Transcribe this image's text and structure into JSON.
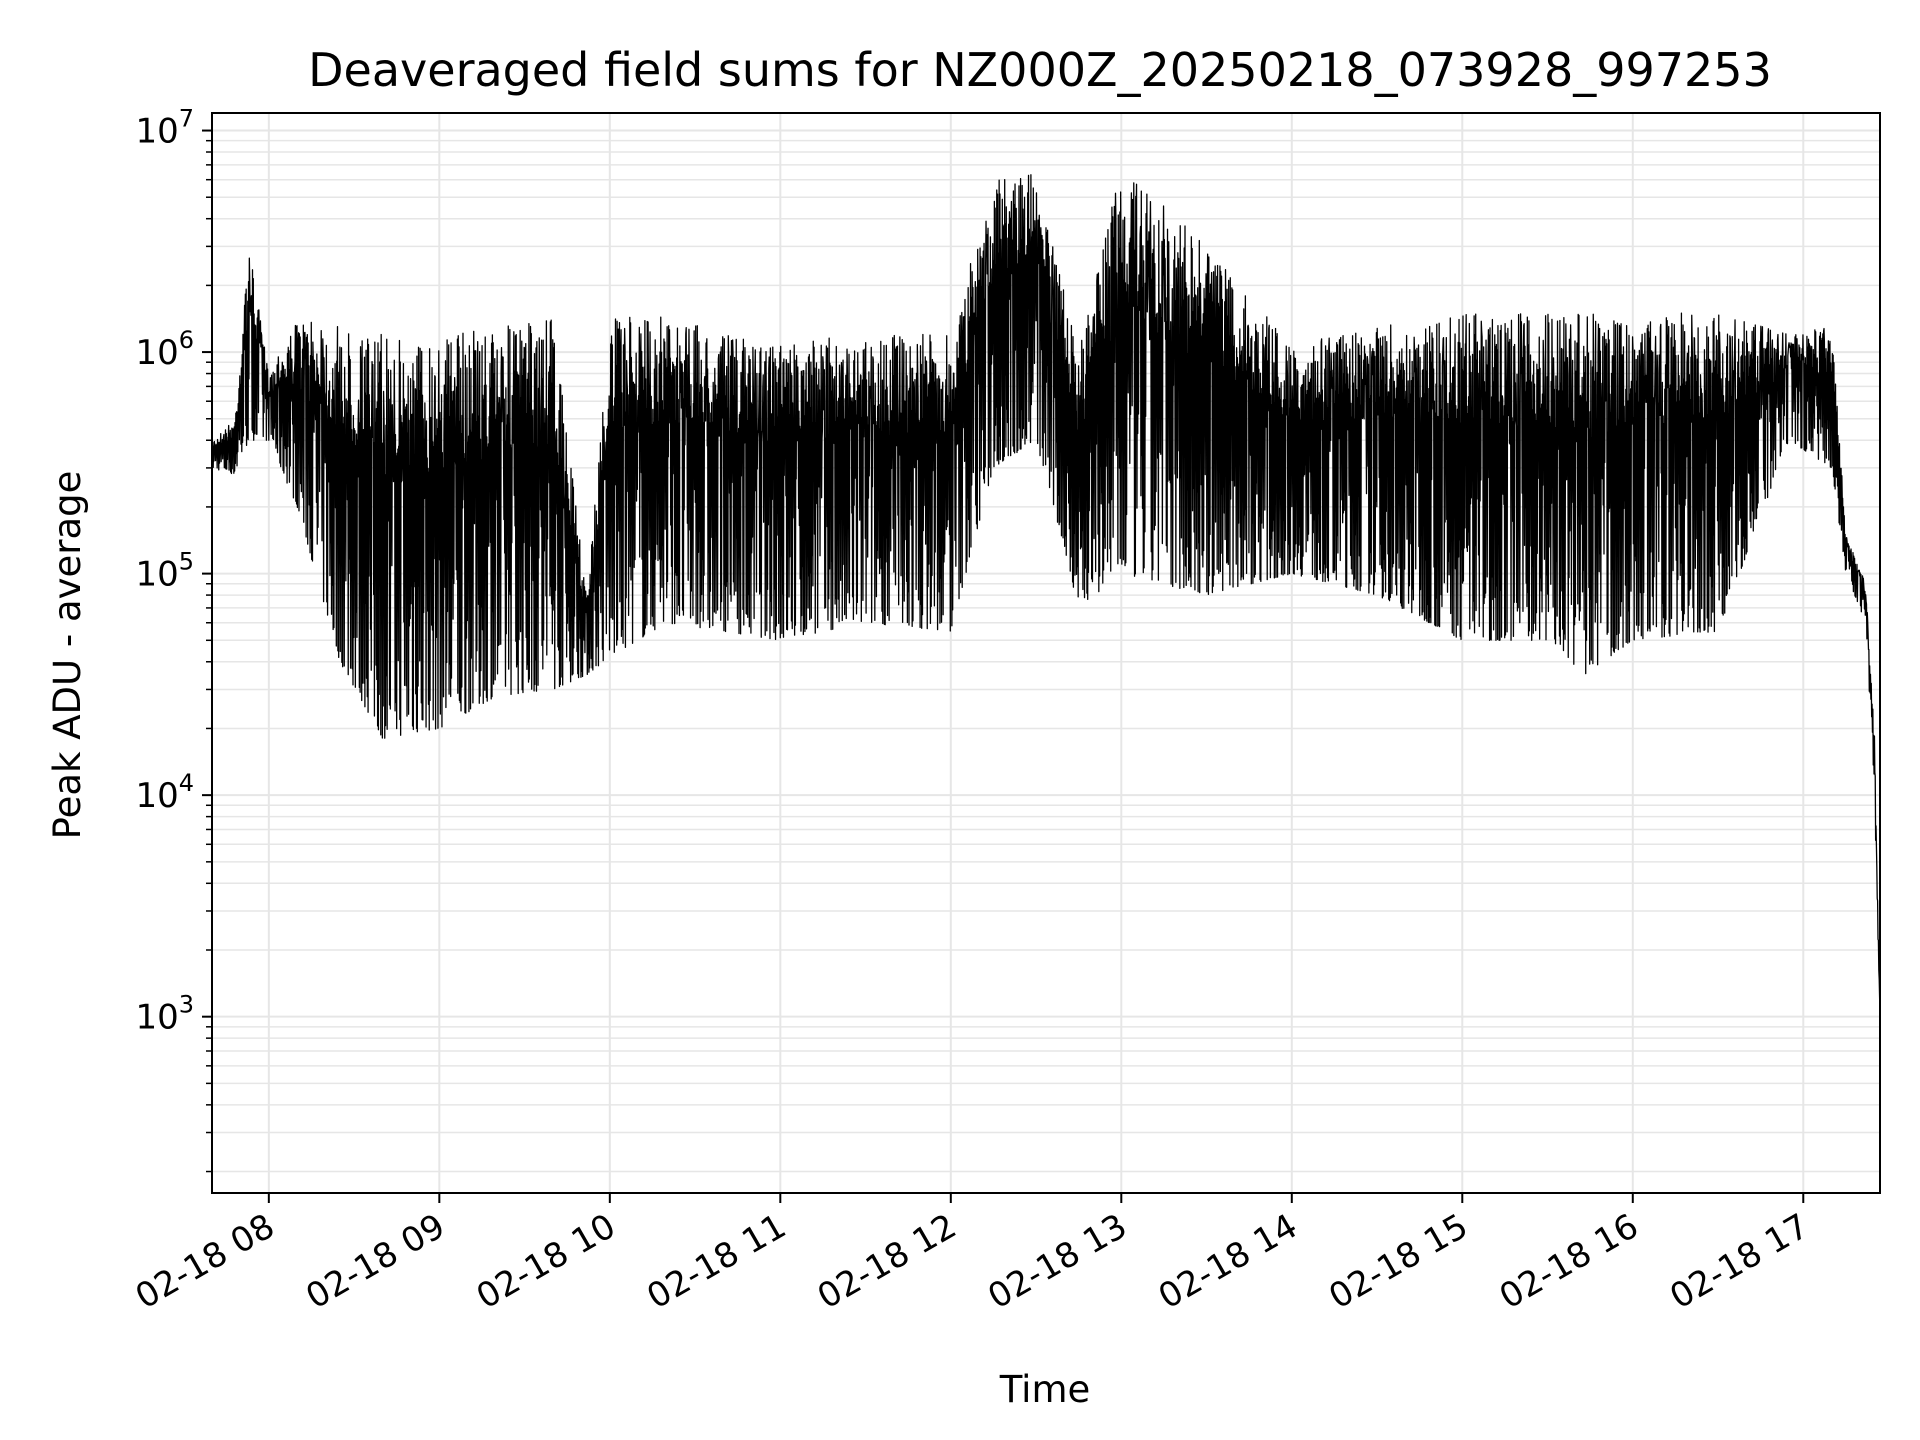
{
  "chart_data": {
    "type": "line",
    "title": "Deaveraged field sums for NZ000Z_20250218_073928_997253",
    "xlabel": "Time",
    "ylabel": "Peak ADU - average",
    "y_scale": "log",
    "ylim": [
      160,
      12000000
    ],
    "xlim": [
      "2025-02-18 07:40",
      "2025-02-18 17:27"
    ],
    "grid": true,
    "line_color": "#000000",
    "x_ticks": [
      {
        "label": "02-18 08",
        "time": "2025-02-18 08:00"
      },
      {
        "label": "02-18 09",
        "time": "2025-02-18 09:00"
      },
      {
        "label": "02-18 10",
        "time": "2025-02-18 10:00"
      },
      {
        "label": "02-18 11",
        "time": "2025-02-18 11:00"
      },
      {
        "label": "02-18 12",
        "time": "2025-02-18 12:00"
      },
      {
        "label": "02-18 13",
        "time": "2025-02-18 13:00"
      },
      {
        "label": "02-18 14",
        "time": "2025-02-18 14:00"
      },
      {
        "label": "02-18 15",
        "time": "2025-02-18 15:00"
      },
      {
        "label": "02-18 16",
        "time": "2025-02-18 16:00"
      },
      {
        "label": "02-18 17",
        "time": "2025-02-18 17:00"
      }
    ],
    "y_ticks": [
      {
        "base": "10",
        "exp": "3",
        "value": 1000
      },
      {
        "base": "10",
        "exp": "4",
        "value": 10000
      },
      {
        "base": "10",
        "exp": "5",
        "value": 100000
      },
      {
        "base": "10",
        "exp": "6",
        "value": 1000000
      },
      {
        "base": "10",
        "exp": "7",
        "value": 10000000
      }
    ],
    "envelope": {
      "description_units": "upper and lower bounds of the rapidly oscillating trace, in Peak ADU",
      "points": [
        {
          "time": "2025-02-18 07:40",
          "upper": 400000,
          "lower": 300000
        },
        {
          "time": "2025-02-18 07:48",
          "upper": 500000,
          "lower": 280000
        },
        {
          "time": "2025-02-18 07:53",
          "upper": 3000000,
          "lower": 400000
        },
        {
          "time": "2025-02-18 08:00",
          "upper": 800000,
          "lower": 400000
        },
        {
          "time": "2025-02-18 08:10",
          "upper": 1400000,
          "lower": 200000
        },
        {
          "time": "2025-02-18 08:25",
          "upper": 1300000,
          "lower": 40000
        },
        {
          "time": "2025-02-18 08:40",
          "upper": 1200000,
          "lower": 18000
        },
        {
          "time": "2025-02-18 09:00",
          "upper": 1200000,
          "lower": 20000
        },
        {
          "time": "2025-02-18 09:20",
          "upper": 1300000,
          "lower": 28000
        },
        {
          "time": "2025-02-18 09:40",
          "upper": 1400000,
          "lower": 30000
        },
        {
          "time": "2025-02-18 09:52",
          "upper": 80000,
          "lower": 35000
        },
        {
          "time": "2025-02-18 10:00",
          "upper": 1400000,
          "lower": 42000
        },
        {
          "time": "2025-02-18 10:20",
          "upper": 1500000,
          "lower": 60000
        },
        {
          "time": "2025-02-18 10:40",
          "upper": 1200000,
          "lower": 55000
        },
        {
          "time": "2025-02-18 11:00",
          "upper": 1100000,
          "lower": 50000
        },
        {
          "time": "2025-02-18 11:30",
          "upper": 1200000,
          "lower": 60000
        },
        {
          "time": "2025-02-18 12:00",
          "upper": 1200000,
          "lower": 55000
        },
        {
          "time": "2025-02-18 12:15",
          "upper": 6000000,
          "lower": 300000
        },
        {
          "time": "2025-02-18 12:30",
          "upper": 6500000,
          "lower": 400000
        },
        {
          "time": "2025-02-18 12:45",
          "upper": 1000000,
          "lower": 70000
        },
        {
          "time": "2025-02-18 13:00",
          "upper": 7000000,
          "lower": 100000
        },
        {
          "time": "2025-02-18 13:30",
          "upper": 3000000,
          "lower": 80000
        },
        {
          "time": "2025-02-18 14:00",
          "upper": 1100000,
          "lower": 100000
        },
        {
          "time": "2025-02-18 14:30",
          "upper": 1300000,
          "lower": 80000
        },
        {
          "time": "2025-02-18 15:00",
          "upper": 1500000,
          "lower": 50000
        },
        {
          "time": "2025-02-18 15:30",
          "upper": 1500000,
          "lower": 50000
        },
        {
          "time": "2025-02-18 15:43",
          "upper": 1500000,
          "lower": 35000
        },
        {
          "time": "2025-02-18 16:00",
          "upper": 1500000,
          "lower": 50000
        },
        {
          "time": "2025-02-18 16:30",
          "upper": 1500000,
          "lower": 55000
        },
        {
          "time": "2025-02-18 16:55",
          "upper": 1200000,
          "lower": 400000
        },
        {
          "time": "2025-02-18 17:10",
          "upper": 1300000,
          "lower": 300000
        },
        {
          "time": "2025-02-18 17:15",
          "upper": 150000,
          "lower": 100000
        },
        {
          "time": "2025-02-18 17:22",
          "upper": 90000,
          "lower": 60000
        },
        {
          "time": "2025-02-18 17:25",
          "upper": 20000,
          "lower": 10000
        },
        {
          "time": "2025-02-18 17:27",
          "upper": 1000,
          "lower": 1000
        }
      ]
    }
  }
}
